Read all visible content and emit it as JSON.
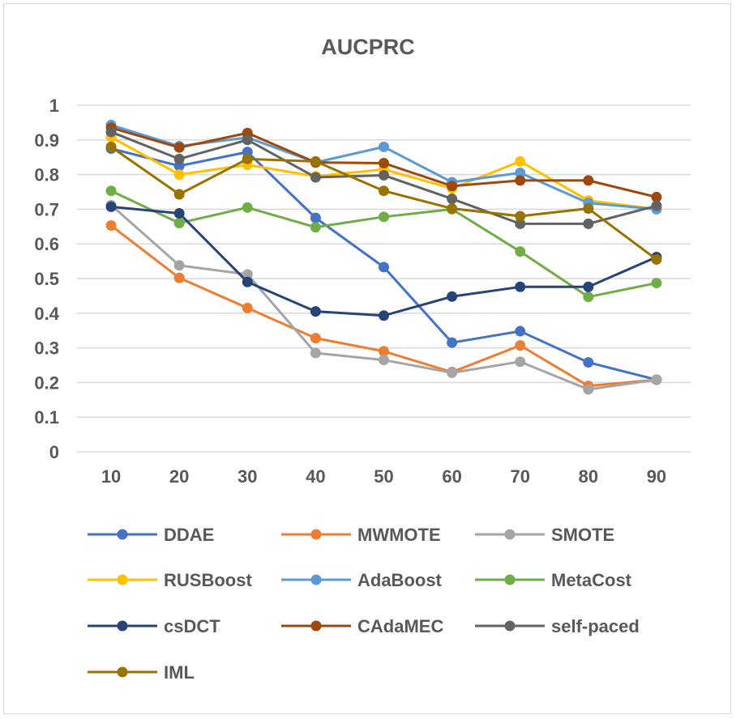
{
  "chart_data": {
    "type": "line",
    "title": "AUCPRC",
    "xlabel": "",
    "ylabel": "",
    "x": [
      10,
      20,
      30,
      40,
      50,
      60,
      70,
      80,
      90
    ],
    "x_tick_labels": [
      "10",
      "20",
      "30",
      "40",
      "50",
      "60",
      "70",
      "80",
      "90"
    ],
    "ylim": [
      0,
      1
    ],
    "y_tick_labels": [
      "0",
      "0.1",
      "0.2",
      "0.3",
      "0.4",
      "0.5",
      "0.6",
      "0.7",
      "0.8",
      "0.9",
      "1"
    ],
    "grid": true,
    "legend_position": "bottom",
    "series": [
      {
        "name": "DDAE",
        "color": "#4472c4",
        "values": [
          0.875,
          0.825,
          0.865,
          0.675,
          0.533,
          0.315,
          0.348,
          0.258,
          0.208
        ]
      },
      {
        "name": "MWMOTE",
        "color": "#ed7d31",
        "values": [
          0.653,
          0.502,
          0.415,
          0.328,
          0.29,
          0.23,
          0.307,
          0.19,
          0.208
        ]
      },
      {
        "name": "SMOTE",
        "color": "#a5a5a5",
        "values": [
          0.712,
          0.538,
          0.512,
          0.285,
          0.265,
          0.228,
          0.26,
          0.18,
          0.208
        ]
      },
      {
        "name": "RUSBoost",
        "color": "#ffc000",
        "values": [
          0.908,
          0.8,
          0.828,
          0.795,
          0.815,
          0.76,
          0.838,
          0.725,
          0.7
        ]
      },
      {
        "name": "AdaBoost",
        "color": "#5b9bd5",
        "values": [
          0.943,
          0.882,
          0.907,
          0.835,
          0.88,
          0.778,
          0.805,
          0.718,
          0.7
        ]
      },
      {
        "name": "MetaCost",
        "color": "#70ad47",
        "values": [
          0.753,
          0.66,
          0.705,
          0.648,
          0.678,
          0.7,
          0.578,
          0.447,
          0.487
        ]
      },
      {
        "name": "csDCT",
        "color": "#264478",
        "values": [
          0.707,
          0.688,
          0.49,
          0.405,
          0.393,
          0.448,
          0.476,
          0.476,
          0.562
        ]
      },
      {
        "name": "CAdaMEC",
        "color": "#9e480e",
        "values": [
          0.935,
          0.878,
          0.92,
          0.835,
          0.833,
          0.767,
          0.783,
          0.783,
          0.735
        ]
      },
      {
        "name": "self-paced",
        "color": "#636363",
        "values": [
          0.923,
          0.845,
          0.9,
          0.792,
          0.798,
          0.73,
          0.658,
          0.658,
          0.71
        ]
      },
      {
        "name": "IML",
        "color": "#997300",
        "values": [
          0.88,
          0.743,
          0.845,
          0.838,
          0.753,
          0.702,
          0.68,
          0.702,
          0.555
        ]
      }
    ]
  }
}
